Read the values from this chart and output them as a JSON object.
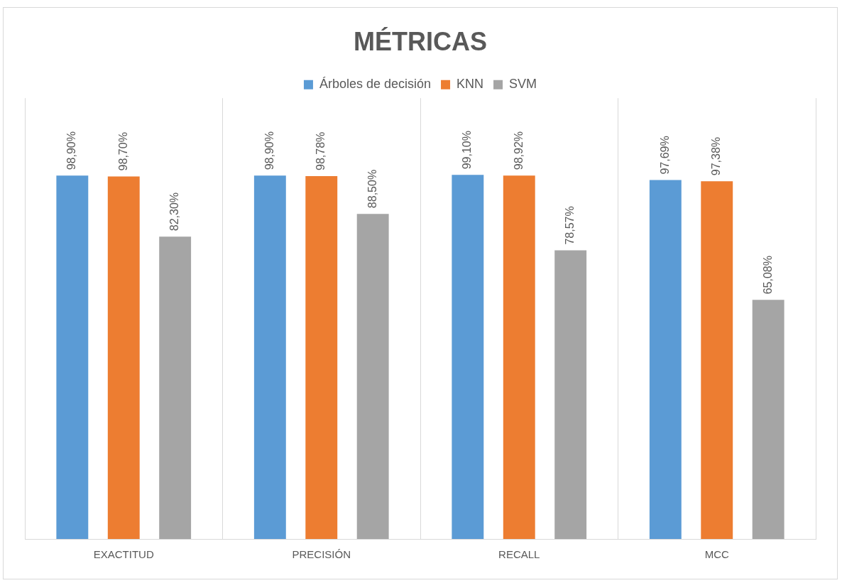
{
  "chart_data": {
    "type": "bar",
    "title": "MÉTRICAS",
    "categories": [
      "EXACTITUD",
      "PRECISIÓN",
      "RECALL",
      "MCC"
    ],
    "series": [
      {
        "name": "Árboles de decisión",
        "color": "#5b9bd5",
        "values": [
          98.9,
          98.9,
          99.1,
          97.69
        ],
        "value_labels": [
          "98,90%",
          "98,90%",
          "99,10%",
          "97,69%"
        ]
      },
      {
        "name": "KNN",
        "color": "#ed7d31",
        "values": [
          98.7,
          98.78,
          98.92,
          97.38
        ],
        "value_labels": [
          "98,70%",
          "98,78%",
          "98,92%",
          "97,38%"
        ]
      },
      {
        "name": "SVM",
        "color": "#a5a5a5",
        "values": [
          82.3,
          88.5,
          78.57,
          65.08
        ],
        "value_labels": [
          "82,30%",
          "88,50%",
          "78,57%",
          "65,08%"
        ]
      }
    ],
    "ylim": [
      0,
      120
    ],
    "tick_labels": "x",
    "grid": "x",
    "legend": "top"
  }
}
